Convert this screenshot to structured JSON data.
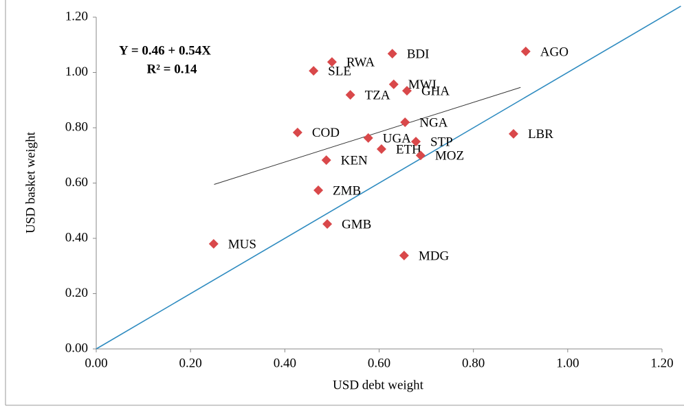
{
  "chart_data": {
    "type": "scatter",
    "x_label": "USD debt weight",
    "y_label": "USD basket weight",
    "labels": [
      "MUS",
      "ZMB",
      "GMB",
      "KEN",
      "COD",
      "SLE",
      "RWA",
      "TZA",
      "UGA",
      "ETH",
      "BDI",
      "MWI",
      "GHA",
      "NGA",
      "STP",
      "MOZ",
      "MDG",
      "LBR",
      "AGO"
    ],
    "x": [
      0.249,
      0.471,
      0.49,
      0.488,
      0.427,
      0.461,
      0.5,
      0.539,
      0.577,
      0.605,
      0.628,
      0.631,
      0.659,
      0.655,
      0.678,
      0.688,
      0.653,
      0.885,
      0.911
    ],
    "values": [
      0.38,
      0.574,
      0.452,
      0.683,
      0.783,
      1.006,
      1.038,
      0.919,
      0.763,
      0.723,
      1.068,
      0.957,
      0.934,
      0.82,
      0.75,
      0.7,
      0.338,
      0.778,
      1.076
    ],
    "color": "#d9484a",
    "trendline": {
      "equation": "Y = 0.46 + 0.54X",
      "r2": "R² = 0.14",
      "x": [
        0.25,
        0.9
      ],
      "y": [
        0.595,
        0.946
      ],
      "color": "#333333"
    },
    "diagonal": {
      "x": [
        0,
        1.24
      ],
      "y": [
        0,
        1.24
      ],
      "color": "#2e8bc0"
    },
    "xlim": [
      0,
      1.2
    ],
    "ylim": [
      0,
      1.2
    ],
    "xticks": [
      {
        "value": 0,
        "label": "0.00"
      },
      {
        "value": 0.2,
        "label": "0.20"
      },
      {
        "value": 0.4,
        "label": "0.40"
      },
      {
        "value": 0.6,
        "label": "0.60"
      },
      {
        "value": 0.8,
        "label": "0.80"
      },
      {
        "value": 1,
        "label": "1.00"
      },
      {
        "value": 1.2,
        "label": "1.20"
      }
    ],
    "yticks": [
      {
        "value": 0,
        "label": "0.00"
      },
      {
        "value": 0.2,
        "label": "0.20"
      },
      {
        "value": 0.4,
        "label": "0.40"
      },
      {
        "value": 0.6,
        "label": "0.60"
      },
      {
        "value": 0.8,
        "label": "0.80"
      },
      {
        "value": 1,
        "label": "1.00"
      },
      {
        "value": 1.2,
        "label": "1.20"
      }
    ]
  }
}
